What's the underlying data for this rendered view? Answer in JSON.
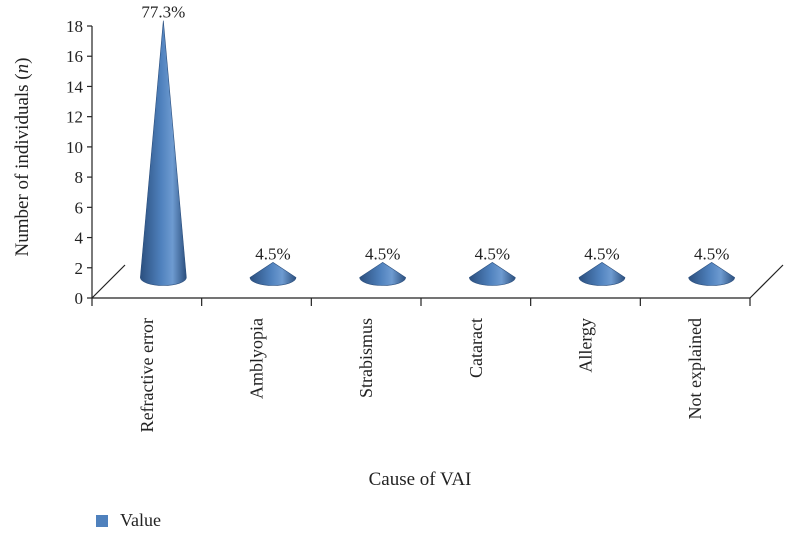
{
  "chart_data": {
    "type": "bar",
    "shape": "cone",
    "categories": [
      "Refractive error",
      "Amblyopia",
      "Strabismus",
      "Cataract",
      "Allergy",
      "Not explained"
    ],
    "series": [
      {
        "name": "Value",
        "values": [
          17,
          1,
          1,
          1,
          1,
          1
        ],
        "labels": [
          "77.3%",
          "4.5%",
          "4.5%",
          "4.5%",
          "4.5%",
          "4.5%"
        ]
      }
    ],
    "xlabel": "Cause of VAI",
    "ylabel_prefix": "Number of individuals (",
    "ylabel_var": "n",
    "ylabel_suffix": ")",
    "ylim": [
      0,
      18
    ],
    "yticks": [
      0,
      2,
      4,
      6,
      8,
      10,
      12,
      14,
      16,
      18
    ],
    "legend_position": "bottom-left",
    "colors": {
      "bar": "#4f81bd",
      "bar_dark": "#2b4f7e",
      "bar_light": "#6e9bd1",
      "axis": "#222222"
    }
  }
}
